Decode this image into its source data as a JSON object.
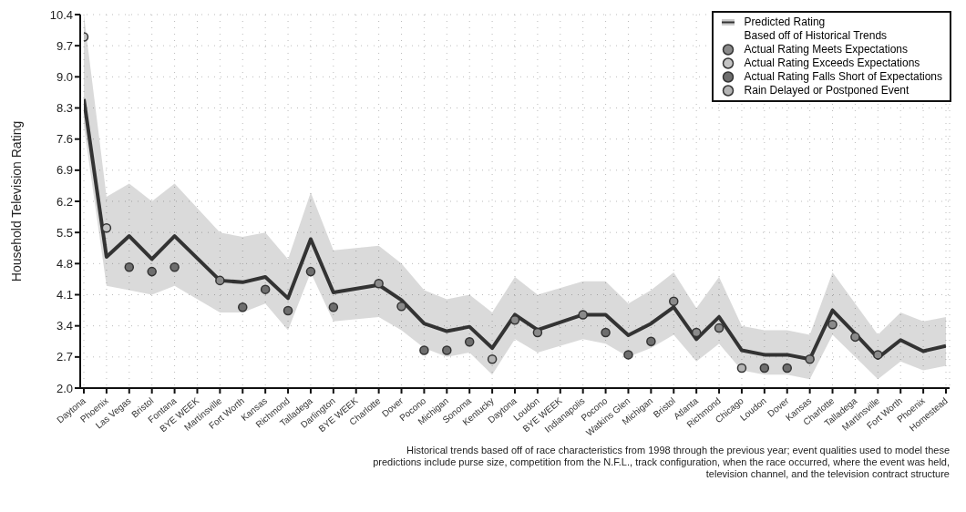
{
  "chart_data": {
    "type": "scatter",
    "ylabel": "Household Television Rating",
    "categories": [
      "Daytona",
      "Phoenix",
      "Las Vegas",
      "Bristol",
      "Fontana",
      "BYE WEEK",
      "Martinsville",
      "Fort Worth",
      "Kansas",
      "Richmond",
      "Talladega",
      "Darlington",
      "BYE WEEK",
      "Charlotte",
      "Dover",
      "Pocono",
      "Michigan",
      "Sonoma",
      "Kentucky",
      "Daytona",
      "Loudon",
      "BYE WEEK",
      "Indianapolis",
      "Pocono",
      "Watkins Glen",
      "Michigan",
      "Bristol",
      "Atlanta",
      "Richmond",
      "Chicago",
      "Loudon",
      "Dover",
      "Kansas",
      "Charlotte",
      "Talladega",
      "Martinsville",
      "Fort Worth",
      "Phoenix",
      "Homestead"
    ],
    "series": [
      {
        "name": "Predicted Rating\nBased off of Historical Trends",
        "type": "line",
        "marker": "none",
        "color": "#333333",
        "values": [
          8.5,
          4.95,
          5.42,
          4.9,
          5.42,
          null,
          4.42,
          4.38,
          4.5,
          4.02,
          5.35,
          4.15,
          null,
          4.32,
          3.98,
          3.45,
          3.28,
          3.38,
          2.9,
          3.65,
          3.31,
          null,
          3.65,
          3.65,
          3.19,
          3.45,
          3.82,
          3.1,
          3.6,
          2.85,
          2.75,
          2.75,
          2.65,
          3.75,
          3.22,
          2.68,
          3.08,
          2.83,
          2.95
        ],
        "lower": [
          7.9,
          4.3,
          4.2,
          4.1,
          4.3,
          null,
          3.7,
          3.7,
          3.9,
          3.3,
          4.6,
          3.5,
          null,
          3.6,
          3.3,
          2.9,
          2.7,
          2.8,
          2.3,
          3.1,
          2.8,
          null,
          3.1,
          3.0,
          2.7,
          2.9,
          3.2,
          2.6,
          3.0,
          2.4,
          2.3,
          2.3,
          2.2,
          3.2,
          2.7,
          2.2,
          2.6,
          2.4,
          2.5
        ],
        "upper": [
          10.4,
          6.3,
          6.6,
          6.2,
          6.6,
          null,
          5.5,
          5.4,
          5.5,
          4.9,
          6.4,
          5.1,
          null,
          5.2,
          4.8,
          4.2,
          4.0,
          4.1,
          3.7,
          4.5,
          4.1,
          null,
          4.4,
          4.4,
          3.9,
          4.2,
          4.6,
          3.8,
          4.5,
          3.4,
          3.3,
          3.3,
          3.2,
          4.6,
          3.9,
          3.2,
          3.7,
          3.5,
          3.6
        ]
      },
      {
        "name": "Actual Rating Meets Expectations",
        "color": "#8a8a8a",
        "values": [
          null,
          null,
          null,
          null,
          null,
          null,
          4.42,
          null,
          null,
          null,
          null,
          null,
          null,
          4.35,
          3.84,
          null,
          null,
          null,
          null,
          3.53,
          3.25,
          null,
          3.65,
          null,
          null,
          null,
          3.95,
          3.25,
          3.35,
          null,
          null,
          null,
          2.65,
          3.43,
          3.15,
          2.75,
          null,
          null,
          null
        ]
      },
      {
        "name": "Actual Rating Exceeds Expectations",
        "color": "#c4c4c4",
        "values": [
          9.9,
          5.6,
          null,
          null,
          null,
          null,
          null,
          null,
          null,
          null,
          null,
          null,
          null,
          null,
          null,
          null,
          null,
          null,
          null,
          null,
          null,
          null,
          null,
          null,
          null,
          null,
          null,
          null,
          null,
          null,
          null,
          null,
          null,
          null,
          null,
          null,
          null,
          null,
          null
        ]
      },
      {
        "name": "Actual Rating Falls Short of Expectations",
        "color": "#6e6e6e",
        "values": [
          null,
          null,
          4.72,
          4.62,
          4.72,
          null,
          null,
          3.82,
          4.22,
          3.74,
          4.62,
          3.82,
          null,
          null,
          null,
          2.85,
          2.85,
          3.04,
          null,
          null,
          null,
          null,
          null,
          3.25,
          2.75,
          3.05,
          null,
          null,
          null,
          null,
          2.45,
          2.45,
          null,
          null,
          null,
          null,
          null,
          null,
          null
        ]
      },
      {
        "name": "Rain Delayed or Postponed Event",
        "color": "#b4b4b4",
        "values": [
          null,
          null,
          null,
          null,
          null,
          null,
          null,
          null,
          null,
          null,
          null,
          null,
          null,
          null,
          null,
          null,
          null,
          null,
          2.65,
          null,
          null,
          null,
          null,
          null,
          null,
          null,
          null,
          null,
          null,
          2.45,
          null,
          null,
          null,
          null,
          null,
          null,
          null,
          null,
          null
        ]
      }
    ],
    "ylim": [
      2.0,
      10.4
    ],
    "yticks": [
      {
        "value": 2,
        "label": "2.0"
      },
      2.7,
      3.4,
      4.1,
      4.8,
      5.5,
      6.2,
      6.9,
      7.6,
      8.3,
      {
        "value": 9,
        "label": "9.0"
      },
      9.7,
      10.4
    ],
    "grid": true,
    "legend": "top right",
    "marker": "circle",
    "annotations": [
      "Historical trends based off of race characteristics from 1998 through the previous year; event qualities used to model these predictions include purse size, competition from the N.F.L., track configuration, when the race occurred, where the event was held, television channel, and the television contract structure"
    ]
  }
}
